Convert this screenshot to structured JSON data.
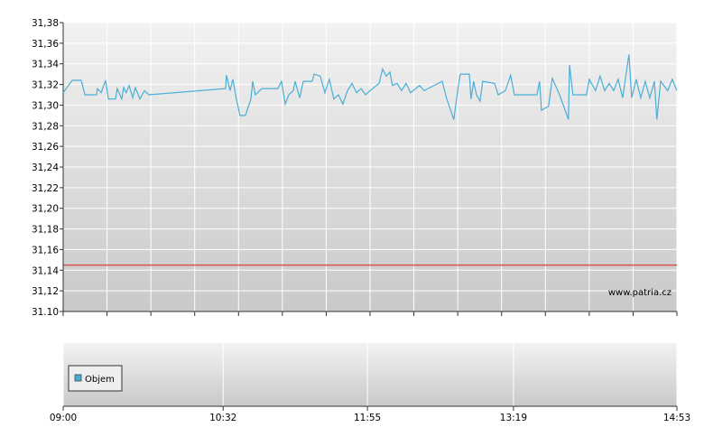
{
  "chart_data": [
    {
      "type": "line",
      "xlim": [
        540,
        893
      ],
      "ylim": [
        31.1,
        31.38
      ],
      "yticks": [
        {
          "value": 31.38,
          "label": "31,38"
        },
        {
          "value": 31.36,
          "label": "31,36"
        },
        {
          "value": 31.34,
          "label": "31,34"
        },
        {
          "value": 31.32,
          "label": "31,32"
        },
        {
          "value": 31.3,
          "label": "31,30"
        },
        {
          "value": 31.28,
          "label": "31,28"
        },
        {
          "value": 31.26,
          "label": "31,26"
        },
        {
          "value": 31.24,
          "label": "31,24"
        },
        {
          "value": 31.22,
          "label": "31,22"
        },
        {
          "value": 31.2,
          "label": "31,20"
        },
        {
          "value": 31.18,
          "label": "31,18"
        },
        {
          "value": 31.16,
          "label": "31,16"
        },
        {
          "value": 31.14,
          "label": "31,14"
        },
        {
          "value": 31.12,
          "label": "31,12"
        },
        {
          "value": 31.1,
          "label": "31.10"
        }
      ],
      "grid": true,
      "reference_line": {
        "value": 31.145,
        "color": "#d9534f"
      },
      "watermark": "www.patria.cz",
      "series": [
        {
          "color": "#4aaed6",
          "x": [
            540,
            545.2,
            550.4,
            552.5,
            559.2,
            559.7,
            561.8,
            564.4,
            566.0,
            570.1,
            571.1,
            573.7,
            574.8,
            576.3,
            577.9,
            580.0,
            581.5,
            584.1,
            586.7,
            589.3,
            633.4,
            633.9,
            636.0,
            637.6,
            639.6,
            641.7,
            644.8,
            648.0,
            649.0,
            650.5,
            654.2,
            663.5,
            665.6,
            667.7,
            669.8,
            672.3,
            673.4,
            676.0,
            678.1,
            683.2,
            684.3,
            687.9,
            690.5,
            693.1,
            695.7,
            698.3,
            700.9,
            703.5,
            706.1,
            708.7,
            711.3,
            713.9,
            716.5,
            721.7,
            723.7,
            725.8,
            727.9,
            729.4,
            732.0,
            734.6,
            737.2,
            739.8,
            745.0,
            747.6,
            758.0,
            760.6,
            764.7,
            767.3,
            768.4,
            773.6,
            774.6,
            776.1,
            777.7,
            779.8,
            781.3,
            788.1,
            790.2,
            794.3,
            797.4,
            799.5,
            812.5,
            814.0,
            815.1,
            819.2,
            821.3,
            825.5,
            830.6,
            831.2,
            833.2,
            841.0,
            842.6,
            846.2,
            848.8,
            851.4,
            854.0,
            856.6,
            859.2,
            861.8,
            865.4,
            867.0,
            869.6,
            872.2,
            874.8,
            877.4,
            880.0,
            881.5,
            883.6,
            887.7,
            890.3,
            893.0
          ],
          "values": [
            31.312,
            31.324,
            31.324,
            31.31,
            31.31,
            31.316,
            31.312,
            31.324,
            31.306,
            31.306,
            31.316,
            31.306,
            31.317,
            31.312,
            31.319,
            31.307,
            31.317,
            31.306,
            31.314,
            31.31,
            31.316,
            31.329,
            31.314,
            31.325,
            31.306,
            31.29,
            31.29,
            31.306,
            31.323,
            31.31,
            31.316,
            31.316,
            31.323,
            31.301,
            31.31,
            31.314,
            31.323,
            31.307,
            31.323,
            31.323,
            31.33,
            31.328,
            31.312,
            31.325,
            31.306,
            31.31,
            31.301,
            31.314,
            31.321,
            31.312,
            31.316,
            31.31,
            31.314,
            31.321,
            31.335,
            31.328,
            31.332,
            31.319,
            31.321,
            31.314,
            31.321,
            31.312,
            31.319,
            31.314,
            31.323,
            31.306,
            31.286,
            31.319,
            31.33,
            31.33,
            31.306,
            31.323,
            31.31,
            31.304,
            31.323,
            31.321,
            31.31,
            31.314,
            31.329,
            31.31,
            31.31,
            31.323,
            31.295,
            31.299,
            31.326,
            31.31,
            31.286,
            31.339,
            31.31,
            31.31,
            31.325,
            31.314,
            31.328,
            31.314,
            31.321,
            31.314,
            31.325,
            31.307,
            31.349,
            31.307,
            31.325,
            31.307,
            31.323,
            31.307,
            31.323,
            31.286,
            31.323,
            31.314,
            31.325,
            31.314
          ]
        }
      ]
    },
    {
      "type": "bar",
      "xlim": [
        540,
        893
      ],
      "xticks": [
        {
          "value": 540,
          "label": "09:00"
        },
        {
          "value": 632,
          "label": "10:32"
        },
        {
          "value": 715,
          "label": "11:55"
        },
        {
          "value": 799,
          "label": "13:19"
        },
        {
          "value": 893,
          "label": "14:53"
        }
      ],
      "grid": true,
      "series": [
        {
          "name": "Objem",
          "color": "#4aaed6",
          "values": []
        }
      ]
    }
  ]
}
